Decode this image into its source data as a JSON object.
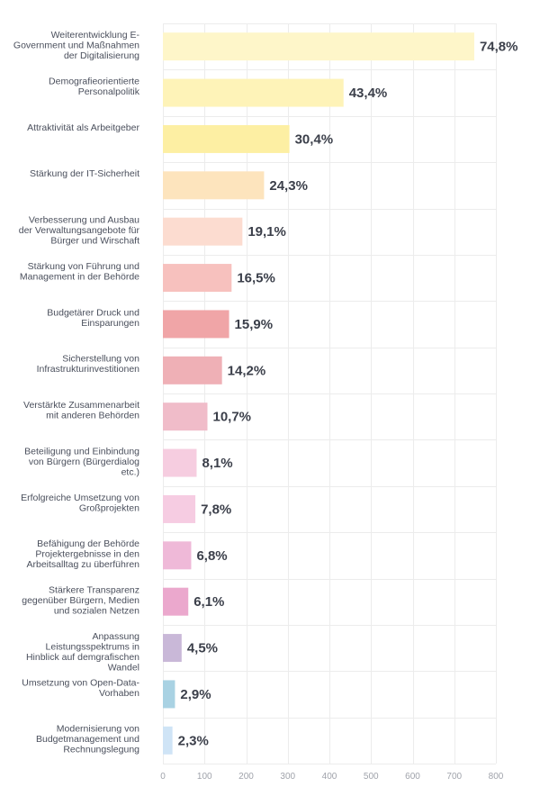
{
  "chart_data": {
    "type": "bar",
    "orientation": "horizontal",
    "categories": [
      "Weiterentwicklung E-Government und Maßnahmen der Digitalisierung",
      "Demografieorientierte Personalpolitik",
      "Attraktivität als Arbeitgeber",
      "Stärkung der IT-Sicherheit",
      "Verbesserung und Ausbau der Verwaltungsangebote für Bürger und Wirschaft",
      "Stärkung von Führung und Management in der Behörde",
      "Budgetärer Druck und Einsparungen",
      "Sicherstellung von Infrastrukturinvestitionen",
      "Verstärkte Zusammenarbeit mit anderen Behörden",
      "Beteiligung und Einbindung von Bürgern (Bürgerdialog etc.)",
      "Erfolgreiche Umsetzung von Großprojekten",
      "Befähigung der Behörde Projektergebnisse in den Arbeitsalltag zu überführen",
      "Stärkere Transparenz gegenüber Bürgern, Medien und sozialen Netzen",
      "Anpassung Leistungsspektrums in Hinblick auf demgrafischen Wandel",
      "Umsetzung von Open-Data-Vorhaben",
      "Modernisierung von Budgetmanagement und Rechnungslegung"
    ],
    "category_lines": [
      [
        "Weiterentwicklung E-",
        "Government und Maßnahmen",
        "der Digitalisierung"
      ],
      [
        "Demografieorientierte",
        "Personalpolitik"
      ],
      [
        "Attraktivität als Arbeitgeber"
      ],
      [
        "Stärkung der IT-Sicherheit"
      ],
      [
        "Verbesserung und Ausbau",
        "der Verwaltungsangebote für",
        "Bürger und Wirschaft"
      ],
      [
        "Stärkung von Führung und",
        "Management in der Behörde"
      ],
      [
        "Budgetärer Druck und",
        "Einsparungen"
      ],
      [
        "Sicherstellung von",
        "Infrastrukturinvestitionen"
      ],
      [
        "Verstärkte Zusammenarbeit",
        "mit anderen Behörden"
      ],
      [
        "Beteiligung und Einbindung",
        "von Bürgern (Bürgerdialog",
        "etc.)"
      ],
      [
        "Erfolgreiche Umsetzung von",
        "Großprojekten"
      ],
      [
        "Befähigung der Behörde",
        "Projektergebnisse in den",
        "Arbeitsalltag zu überführen"
      ],
      [
        "Stärkere Transparenz",
        "gegenüber Bürgern, Medien",
        "und sozialen Netzen"
      ],
      [
        "Anpassung",
        "Leistungsspektrums in",
        "Hinblick auf demgrafischen",
        "Wandel"
      ],
      [
        "Umsetzung von Open-Data-",
        "Vorhaben"
      ],
      [
        "Modernisierung von",
        "Budgetmanagement und",
        "Rechnungslegung"
      ]
    ],
    "values": [
      748,
      434,
      304,
      243,
      191,
      165,
      159,
      142,
      107,
      81,
      78,
      68,
      61,
      45,
      29,
      23
    ],
    "value_labels": [
      "74,8%",
      "43,4%",
      "30,4%",
      "24,3%",
      "19,1%",
      "16,5%",
      "15,9%",
      "14,2%",
      "10,7%",
      "8,1%",
      "7,8%",
      "6,8%",
      "6,1%",
      "4,5%",
      "2,9%",
      "2,3%"
    ],
    "colors": [
      "#fef6c9",
      "#fef3b8",
      "#fdefa3",
      "#fde4bd",
      "#fcdcd0",
      "#f7c1be",
      "#f0a5a7",
      "#efb0b6",
      "#f0bcc9",
      "#f6cde0",
      "#f6cce2",
      "#efb9d8",
      "#eba8cd",
      "#c9b8d8",
      "#a9d2e3",
      "#cfe4f6"
    ],
    "xlim": [
      0,
      800
    ],
    "xticks": [
      0,
      100,
      200,
      300,
      400,
      500,
      600,
      700,
      800
    ],
    "xtick_labels": [
      "0",
      "100",
      "200",
      "300",
      "400",
      "500",
      "600",
      "700",
      "800"
    ],
    "grid": true,
    "title": "",
    "xlabel": "",
    "ylabel": ""
  }
}
